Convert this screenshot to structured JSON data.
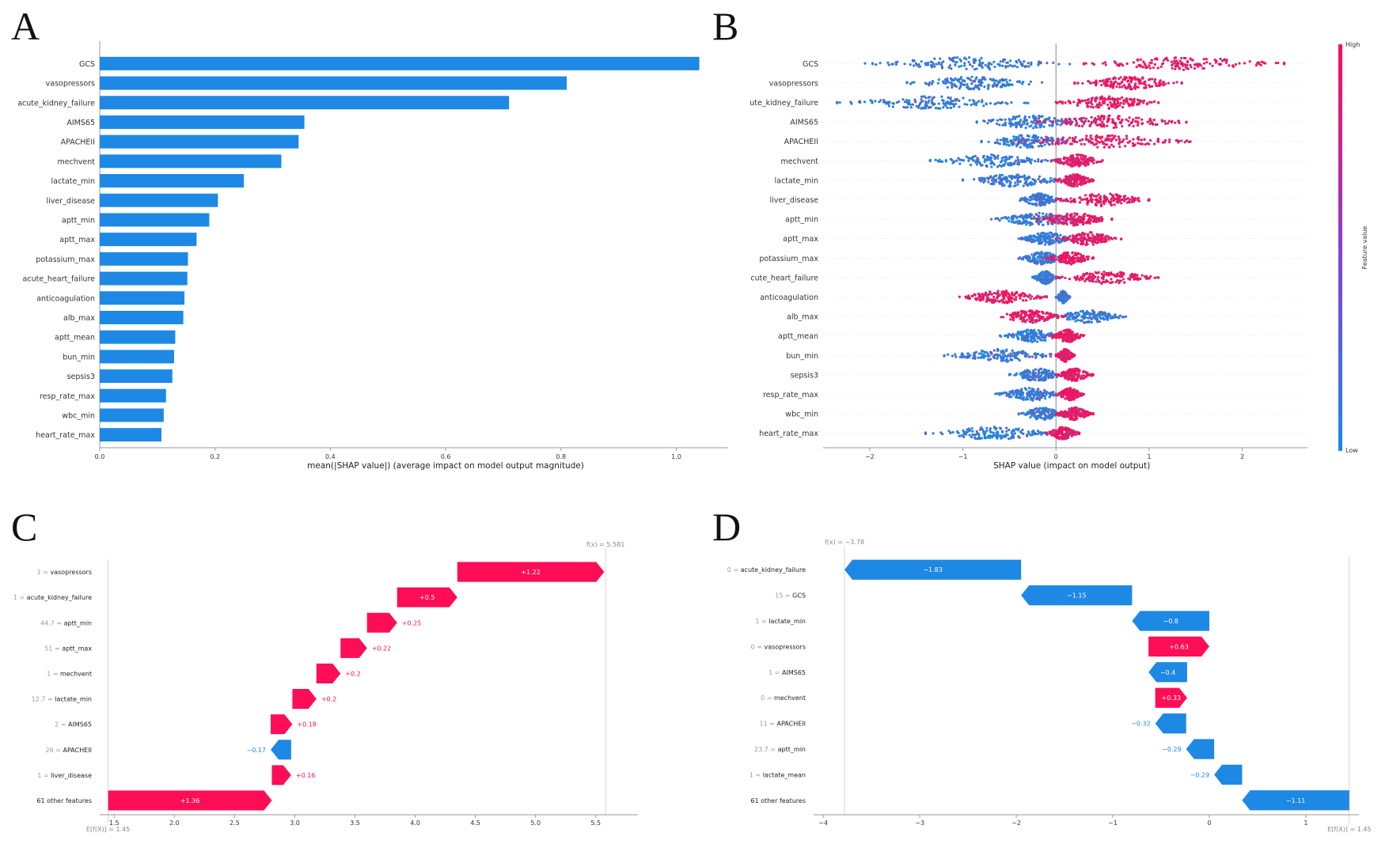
{
  "panels": {
    "A": "A",
    "B": "B",
    "C": "C",
    "D": "D"
  },
  "colors": {
    "pos": "#ff0d57",
    "neg": "#1e88e5",
    "bar": "#1e88e5"
  },
  "chart_data": [
    {
      "panel": "A",
      "type": "bar",
      "orientation": "horizontal",
      "categories": [
        "GCS",
        "vasopressors",
        "acute_kidney_failure",
        "AIMS65",
        "APACHEII",
        "mechvent",
        "lactate_min",
        "liver_disease",
        "aptt_min",
        "aptt_max",
        "potassium_max",
        "acute_heart_failure",
        "anticoagulation",
        "alb_max",
        "aptt_mean",
        "bun_min",
        "sepsis3",
        "resp_rate_max",
        "wbc_min",
        "heart_rate_max"
      ],
      "values": [
        1.04,
        0.81,
        0.71,
        0.355,
        0.345,
        0.315,
        0.25,
        0.205,
        0.19,
        0.168,
        0.153,
        0.152,
        0.147,
        0.145,
        0.131,
        0.129,
        0.126,
        0.115,
        0.111,
        0.107
      ],
      "xlim": [
        0.0,
        1.09
      ],
      "xticks": [
        "0.0",
        "0.2",
        "0.4",
        "0.6",
        "0.8",
        "1.0"
      ],
      "xlabel": "mean(|SHAP value|) (average impact on model output magnitude)"
    },
    {
      "panel": "B",
      "type": "scatter",
      "subtype": "beeswarm",
      "features": [
        "GCS",
        "vasopressors",
        "ute_kidney_failure",
        "AIMS65",
        "APACHEII",
        "mechvent",
        "lactate_min",
        "liver_disease",
        "aptt_min",
        "aptt_max",
        "potassium_max",
        "cute_heart_failure",
        "anticoagulation",
        "alb_max",
        "aptt_mean",
        "bun_min",
        "sepsis3",
        "resp_rate_max",
        "wbc_min",
        "heart_rate_max"
      ],
      "series": [
        {
          "feature": "GCS",
          "low_range": [
            -2.05,
            0.2
          ],
          "high_range": [
            0.3,
            2.45
          ],
          "low_is_negative": false
        },
        {
          "feature": "vasopressors",
          "low_range": [
            -1.6,
            -0.15
          ],
          "high_range": [
            0.2,
            1.35
          ],
          "low_is_negative": true
        },
        {
          "feature": "ute_kidney_failure",
          "low_range": [
            -2.35,
            -0.3
          ],
          "high_range": [
            0.0,
            1.1
          ],
          "low_is_negative": true
        },
        {
          "feature": "AIMS65",
          "low_range": [
            -0.85,
            0.3
          ],
          "high_range": [
            -0.2,
            1.4
          ],
          "low_is_negative": true
        },
        {
          "feature": "APACHEII",
          "low_range": [
            -0.8,
            0.2
          ],
          "high_range": [
            -0.4,
            1.45
          ],
          "low_is_negative": true
        },
        {
          "feature": "mechvent",
          "low_range": [
            -1.35,
            -0.05
          ],
          "high_range": [
            -0.05,
            0.5
          ],
          "low_is_negative": true
        },
        {
          "feature": "lactate_min",
          "low_range": [
            -1.0,
            0.1
          ],
          "high_range": [
            0.0,
            0.4
          ],
          "low_is_negative": true
        },
        {
          "feature": "liver_disease",
          "low_range": [
            -0.4,
            0.05
          ],
          "high_range": [
            0.0,
            1.0
          ],
          "low_is_negative": true
        },
        {
          "feature": "aptt_min",
          "low_range": [
            -0.7,
            0.3
          ],
          "high_range": [
            -0.2,
            0.6
          ],
          "low_is_negative": true
        },
        {
          "feature": "aptt_max",
          "low_range": [
            -0.4,
            0.2
          ],
          "high_range": [
            0.0,
            0.7
          ],
          "low_is_negative": true
        },
        {
          "feature": "potassium_max",
          "low_range": [
            -0.4,
            0.1
          ],
          "high_range": [
            -0.1,
            0.4
          ],
          "low_is_negative": true
        },
        {
          "feature": "cute_heart_failure",
          "low_range": [
            -0.25,
            0.02
          ],
          "high_range": [
            0.0,
            1.1
          ],
          "low_is_negative": true
        },
        {
          "feature": "anticoagulation",
          "low_range": [
            0.0,
            0.15
          ],
          "high_range": [
            -1.05,
            -0.1
          ],
          "low_is_negative": false
        },
        {
          "feature": "alb_max",
          "low_range": [
            -0.05,
            0.75
          ],
          "high_range": [
            -0.65,
            0.1
          ],
          "low_is_negative": false
        },
        {
          "feature": "aptt_mean",
          "low_range": [
            -0.6,
            0.1
          ],
          "high_range": [
            -0.05,
            0.3
          ],
          "low_is_negative": true
        },
        {
          "feature": "bun_min",
          "low_range": [
            -1.2,
            0.05
          ],
          "high_range": [
            0.0,
            0.2
          ],
          "low_is_negative": true
        },
        {
          "feature": "sepsis3",
          "low_range": [
            -0.5,
            0.1
          ],
          "high_range": [
            0.0,
            0.4
          ],
          "low_is_negative": true
        },
        {
          "feature": "resp_rate_max",
          "low_range": [
            -0.65,
            0.1
          ],
          "high_range": [
            0.0,
            0.3
          ],
          "low_is_negative": true
        },
        {
          "feature": "wbc_min",
          "low_range": [
            -0.4,
            0.1
          ],
          "high_range": [
            0.0,
            0.4
          ],
          "low_is_negative": true
        },
        {
          "feature": "heart_rate_max",
          "low_range": [
            -1.4,
            0.05
          ],
          "high_range": [
            -0.1,
            0.25
          ],
          "low_is_negative": true
        }
      ],
      "xlim": [
        -2.5,
        2.7
      ],
      "xticks": [
        "−2",
        "−1",
        "0",
        "1",
        "2"
      ],
      "xlabel": "SHAP value (impact on model output)",
      "colorbar": {
        "label": "Feature value",
        "high": "High",
        "low": "Low"
      }
    },
    {
      "panel": "C",
      "type": "bar",
      "subtype": "waterfall",
      "base_label": "E[f(X)] = 1.45",
      "fx_label": "f(x) = 5.581",
      "base": 1.45,
      "fx": 5.581,
      "rows": [
        {
          "value": "1",
          "feature": "vasopressors",
          "shap": 1.22,
          "label": "+1.22"
        },
        {
          "value": "1",
          "feature": "acute_kidney_failure",
          "shap": 0.5,
          "label": "+0.5"
        },
        {
          "value": "44.7",
          "feature": "aptt_min",
          "shap": 0.25,
          "label": "+0.25"
        },
        {
          "value": "51",
          "feature": "aptt_max",
          "shap": 0.22,
          "label": "+0.22"
        },
        {
          "value": "1",
          "feature": "mechvent",
          "shap": 0.2,
          "label": "+0.2"
        },
        {
          "value": "12.7",
          "feature": "lactate_min",
          "shap": 0.2,
          "label": "+0.2"
        },
        {
          "value": "2",
          "feature": "AIMS65",
          "shap": 0.18,
          "label": "+0.18"
        },
        {
          "value": "26",
          "feature": "APACHEII",
          "shap": -0.17,
          "label": "−0.17"
        },
        {
          "value": "1",
          "feature": "liver_disease",
          "shap": 0.16,
          "label": "+0.16"
        },
        {
          "value": "",
          "feature": "61 other features",
          "shap": 1.36,
          "label": "+1.36"
        }
      ],
      "xlim": [
        1.38,
        5.85
      ],
      "xticks": [
        1.5,
        2.0,
        2.5,
        3.0,
        3.5,
        4.0,
        4.5,
        5.0,
        5.5
      ],
      "xtick_labels": [
        "1.5",
        "2.0",
        "2.5",
        "3.0",
        "3.5",
        "4.0",
        "4.5",
        "5.0",
        "5.5"
      ]
    },
    {
      "panel": "D",
      "type": "bar",
      "subtype": "waterfall",
      "base_label": "E[f(X)] = 1.45",
      "fx_label": "f(x) = −3.78",
      "base": 1.45,
      "fx": -3.78,
      "rows": [
        {
          "value": "0",
          "feature": "acute_kidney_failure",
          "shap": -1.83,
          "label": "−1.83"
        },
        {
          "value": "15",
          "feature": "GCS",
          "shap": -1.15,
          "label": "−1.15"
        },
        {
          "value": "1",
          "feature": "lactate_min",
          "shap": -0.8,
          "label": "−0.8"
        },
        {
          "value": "0",
          "feature": "vasopressors",
          "shap": 0.63,
          "label": "+0.63"
        },
        {
          "value": "1",
          "feature": "AIMS65",
          "shap": -0.4,
          "label": "−0.4"
        },
        {
          "value": "0",
          "feature": "mechvent",
          "shap": 0.33,
          "label": "+0.33"
        },
        {
          "value": "11",
          "feature": "APACHEII",
          "shap": -0.32,
          "label": "−0.32"
        },
        {
          "value": "23.7",
          "feature": "aptt_min",
          "shap": -0.29,
          "label": "−0.29"
        },
        {
          "value": "1",
          "feature": "lactate_mean",
          "shap": -0.29,
          "label": "−0.29"
        },
        {
          "value": "",
          "feature": "61 other features",
          "shap": -1.11,
          "label": "−1.11"
        }
      ],
      "xlim": [
        -4.1,
        1.55
      ],
      "xticks": [
        -4,
        -3,
        -2,
        -1,
        0,
        1
      ],
      "xtick_labels": [
        "−4",
        "−3",
        "−2",
        "−1",
        "0",
        "1"
      ]
    }
  ]
}
